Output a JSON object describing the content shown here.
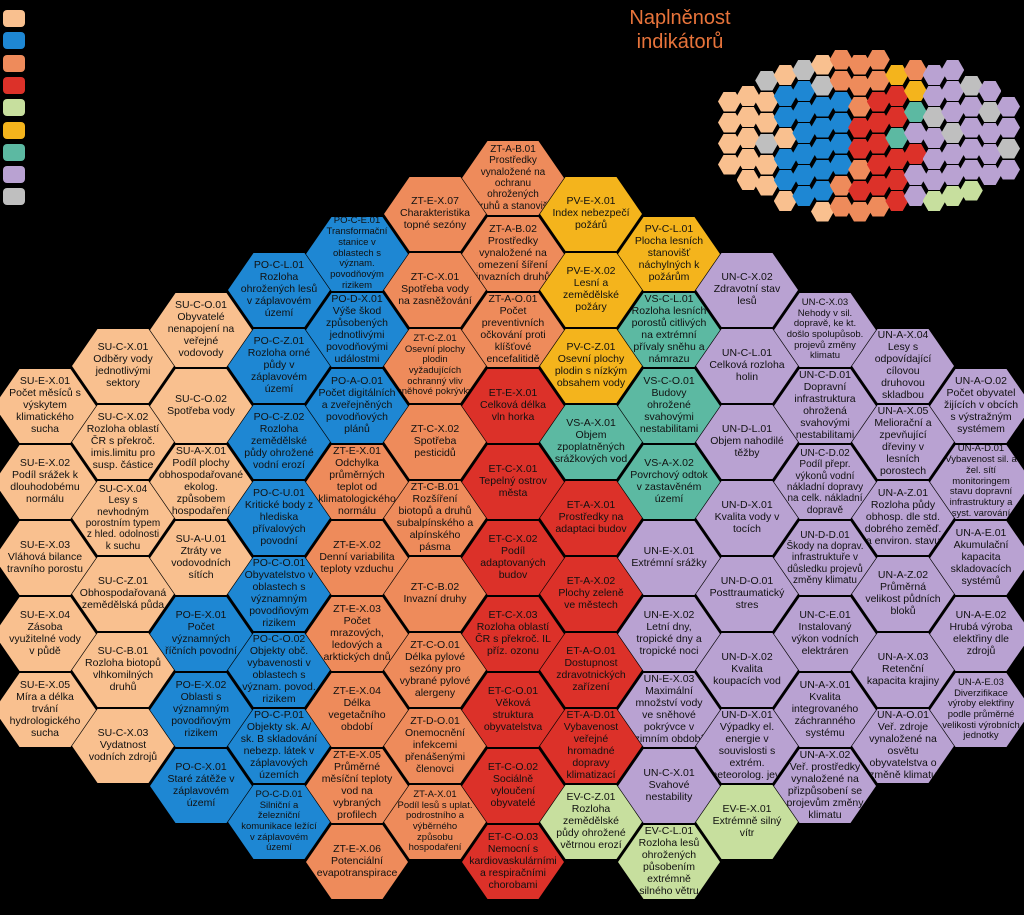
{
  "title": "Naplněnost indikátorů",
  "legend_colors": [
    "#f9c08f",
    "#1e87d3",
    "#ee8b5b",
    "#dc3129",
    "#c7df9e",
    "#f4b41c",
    "#5cb9a2",
    "#b9a2d2",
    "#bfbfbf"
  ],
  "minimap": [
    [
      "#f9c08f",
      "#f9c08f",
      "#f9c08f",
      "#f9c08f"
    ],
    [
      "#f9c08f",
      "#f9c08f",
      "#f9c08f",
      "#f9c08f",
      "#f9c08f"
    ],
    [
      "#bfbfbf",
      "#f9c08f",
      "#f9c08f",
      "#bfbfbf",
      "#f9c08f",
      "#f9c08f"
    ],
    [
      "#f9c08f",
      "#1e87d3",
      "#1e87d3",
      "#f9c08f",
      "#1e87d3",
      "#1e87d3",
      "#f9c08f"
    ],
    [
      "#bfbfbf",
      "#1e87d3",
      "#1e87d3",
      "#1e87d3",
      "#1e87d3",
      "#1e87d3",
      "#1e87d3"
    ],
    [
      "#f9c08f",
      "#bfbfbf",
      "#1e87d3",
      "#1e87d3",
      "#1e87d3",
      "#1e87d3",
      "#1e87d3",
      "#f9c08f"
    ],
    [
      "#ee8b5b",
      "#ee8b5b",
      "#1e87d3",
      "#1e87d3",
      "#1e87d3",
      "#1e87d3",
      "#ee8b5b",
      "#ee8b5b"
    ],
    [
      "#ee8b5b",
      "#ee8b5b",
      "#ee8b5b",
      "#dc3129",
      "#dc3129",
      "#ee8b5b",
      "#dc3129",
      "#ee8b5b"
    ],
    [
      "#ee8b5b",
      "#ee8b5b",
      "#dc3129",
      "#dc3129",
      "#dc3129",
      "#dc3129",
      "#dc3129",
      "#ee8b5b"
    ],
    [
      "#f4b41c",
      "#dc3129",
      "#dc3129",
      "#5cb9a2",
      "#dc3129",
      "#dc3129",
      "#dc3129"
    ],
    [
      "#ee8b5b",
      "#f4b41c",
      "#5cb9a2",
      "#b9a2d2",
      "#dc3129",
      "#b9a2d2",
      "#b9a2d2"
    ],
    [
      "#b9a2d2",
      "#b9a2d2",
      "#bfbfbf",
      "#b9a2d2",
      "#b9a2d2",
      "#b9a2d2",
      "#c7df9e"
    ],
    [
      "#b9a2d2",
      "#b9a2d2",
      "#b9a2d2",
      "#bfbfbf",
      "#b9a2d2",
      "#b9a2d2",
      "#c7df9e"
    ],
    [
      "#bfbfbf",
      "#b9a2d2",
      "#b9a2d2",
      "#b9a2d2",
      "#b9a2d2",
      "#c7df9e"
    ],
    [
      "#b9a2d2",
      "#bfbfbf",
      "#b9a2d2",
      "#b9a2d2",
      "#b9a2d2"
    ],
    [
      "#b9a2d2",
      "#b9a2d2",
      "#bfbfbf",
      "#b9a2d2"
    ]
  ],
  "nodes": [
    {
      "code": "SU-E-X.01",
      "label": "Počet měsíců s výskytem klimatického sucha",
      "color": "#f9c08f"
    },
    {
      "code": "SU-E-X.02",
      "label": "Podíl srážek k dlouhodobému normálu",
      "color": "#f9c08f"
    },
    {
      "code": "SU-E-X.03",
      "label": "Vláhová bilance travního porostu",
      "color": "#f9c08f"
    },
    {
      "code": "SU-E-X.04",
      "label": "Zásoba využitelné vody v půdě",
      "color": "#f9c08f"
    },
    {
      "code": "SU-E-X.05",
      "label": "Míra a délka trvání hydrologického sucha",
      "color": "#f9c08f"
    },
    {
      "code": "SU-C-X.01",
      "label": "Odběry vody jednotlivými sektory",
      "color": "#f9c08f"
    },
    {
      "code": "SU-C-X.02",
      "label": "Rozloha oblastí ČR s překroč. imis.limitu pro susp. částice",
      "color": "#f9c08f"
    },
    {
      "code": "SU-C-X.04",
      "label": "Lesy s nevhodným porostním typem z hled. odolnosti k suchu",
      "color": "#f9c08f"
    },
    {
      "code": "SU-C-Z.01",
      "label": "Obhospodařovaná zemědělská půda",
      "color": "#f9c08f"
    },
    {
      "code": "SU-C-B.01",
      "label": "Rozloha biotopů vlhkomilných druhů",
      "color": "#f9c08f"
    },
    {
      "code": "SU-C-X.03",
      "label": "Vydatnost vodních zdrojů",
      "color": "#f9c08f"
    },
    {
      "code": "SU-C-O.01",
      "label": "Obyvatelé nenapojení na veřejné vodovody",
      "color": "#f9c08f"
    },
    {
      "code": "SU-C-O.02",
      "label": "Spotřeba vody",
      "color": "#f9c08f"
    },
    {
      "code": "SU-A-X.01",
      "label": "Podíl plochy obhospodařované ekolog. způsobem hospodaření",
      "color": "#f9c08f"
    },
    {
      "code": "SU-A-U.01",
      "label": "Ztráty ve vodovodních sítích",
      "color": "#f9c08f"
    },
    {
      "code": "PO-E-X.01",
      "label": "Počet významných říčních povodní",
      "color": "#1e87d3"
    },
    {
      "code": "PO-E-X.02",
      "label": "Oblasti s významným povodňovým rizikem",
      "color": "#1e87d3"
    },
    {
      "code": "PO-C-X.01",
      "label": "Staré zátěže v záplavovém území",
      "color": "#1e87d3"
    },
    {
      "code": "PO-C-L.01",
      "label": "Rozloha ohrožených lesů v záplavovém území",
      "color": "#1e87d3"
    },
    {
      "code": "PO-C-Z.01",
      "label": "Rozloha orné půdy v záplavovém území",
      "color": "#1e87d3"
    },
    {
      "code": "PO-C-Z.02",
      "label": "Rozloha zemědělské půdy ohrožené vodní erozí",
      "color": "#1e87d3"
    },
    {
      "code": "PO-C-U.01",
      "label": "Kritické body z hlediska přívalových povodní",
      "color": "#1e87d3"
    },
    {
      "code": "PO-C-O.01",
      "label": "Obyvatelstvo v oblastech s významným povodňovým rizikem",
      "color": "#1e87d3"
    },
    {
      "code": "PO-C-O.02",
      "label": "Objekty obč. vybavenosti v oblastech s význam. povod. rizikem",
      "color": "#1e87d3"
    },
    {
      "code": "PO-C-P.01",
      "label": "Objekty sk. A/ sk. B skladování nebezp. látek v záplavových územích",
      "color": "#1e87d3"
    },
    {
      "code": "PO-C-D.01",
      "label": "Silniční a železniční komunikace ležící v záplavovém území",
      "color": "#1e87d3"
    },
    {
      "code": "PO-C-E.01",
      "label": "Transformační stanice v oblastech s význam. povodňovým rizikem",
      "color": "#1e87d3"
    },
    {
      "code": "PO-D-X.01",
      "label": "Výše škod způsobených jednotlivými povodňovými událostmi",
      "color": "#1e87d3"
    },
    {
      "code": "PO-A-O.01",
      "label": "Počet digitálních a zveřejněných povodňových plánů",
      "color": "#1e87d3"
    },
    {
      "code": "ZT-E-X.01",
      "label": "Odchylka průměrných teplot od klimatologického normálu",
      "color": "#ee8b5b"
    },
    {
      "code": "ZT-E-X.02",
      "label": "Denní variabilita teploty vzduchu",
      "color": "#ee8b5b"
    },
    {
      "code": "ZT-E-X.03",
      "label": "Počet mrazových, ledových a arktických dnů",
      "color": "#ee8b5b"
    },
    {
      "code": "ZT-E-X.04",
      "label": "Délka vegetačního období",
      "color": "#ee8b5b"
    },
    {
      "code": "ZT-E-X.05",
      "label": "Průměrné měsíční teploty vod na vybraných profilech",
      "color": "#ee8b5b"
    },
    {
      "code": "ZT-E-X.06",
      "label": "Potenciální evapotranspirace",
      "color": "#ee8b5b"
    },
    {
      "code": "ZT-E-X.07",
      "label": "Charakteristika topné sezóny",
      "color": "#ee8b5b"
    },
    {
      "code": "ZT-C-X.01",
      "label": "Spotřeba vody na zasněžování",
      "color": "#ee8b5b"
    },
    {
      "code": "ZT-C-Z.01",
      "label": "Osevní plochy plodin vyžadujících ochranný vliv sněhové pokrývky",
      "color": "#ee8b5b"
    },
    {
      "code": "ZT-C-X.02",
      "label": "Spotřeba pesticidů",
      "color": "#ee8b5b"
    },
    {
      "code": "ZT-C-B.01",
      "label": "Rozšíření biotopů a druhů subalpínského a alpínského pásma",
      "color": "#ee8b5b"
    },
    {
      "code": "ZT-C-B.02",
      "label": "Invazní druhy",
      "color": "#ee8b5b"
    },
    {
      "code": "ZT-C-O.01",
      "label": "Délka pylové sezóny pro vybrané pylové alergeny",
      "color": "#ee8b5b"
    },
    {
      "code": "ZT-D-O.01",
      "label": "Onemocnění infekcemi přenášenými členovci",
      "color": "#ee8b5b"
    },
    {
      "code": "ZT-A-X.01",
      "label": "Podíl lesů s uplat. podrostního a výběrného způsobu hospodaření",
      "color": "#ee8b5b"
    },
    {
      "code": "ZT-A-B.01",
      "label": "Prostředky vynaložené na ochranu ohrožených druhů a stanovišť",
      "color": "#ee8b5b"
    },
    {
      "code": "ZT-A-B.02",
      "label": "Prostředky vynaložené na omezení šíření invazních druhů",
      "color": "#ee8b5b"
    },
    {
      "code": "ZT-A-O.01",
      "label": "Počet preventivních očkování proti klíšťové encefalitidě",
      "color": "#ee8b5b"
    },
    {
      "code": "ET-E-X.01",
      "label": "Celková délka vln horka",
      "color": "#dc3129"
    },
    {
      "code": "ET-C-X.01",
      "label": "Tepelný ostrov města",
      "color": "#dc3129"
    },
    {
      "code": "ET-C-X.02",
      "label": "Podíl adaptovaných budov",
      "color": "#dc3129"
    },
    {
      "code": "ET-C-X.03",
      "label": "Rozloha oblastí ČR s překroč. IL příz. ozonu",
      "color": "#dc3129"
    },
    {
      "code": "ET-C-O.01",
      "label": "Věková struktura obyvatelstva",
      "color": "#dc3129"
    },
    {
      "code": "ET-C-O.02",
      "label": "Sociálně vyloučení obyvatelé",
      "color": "#dc3129"
    },
    {
      "code": "ET-C-O.03",
      "label": "Nemocní s kardiovaskulárními a respiračními chorobami",
      "color": "#dc3129"
    },
    {
      "code": "PV-E-X.01",
      "label": "Index nebezpečí požárů",
      "color": "#f4b41c"
    },
    {
      "code": "PV-E-X.02",
      "label": "Lesní a zemědělské požáry",
      "color": "#f4b41c"
    },
    {
      "code": "PV-C-Z.01",
      "label": "Osevní plochy plodin s nízkým obsahem vody",
      "color": "#f4b41c"
    },
    {
      "code": "VS-A-X.01",
      "label": "Objem zpoplatněných srážkových vod",
      "color": "#5cb9a2"
    },
    {
      "code": "ET-A-X.01",
      "label": "Prostředky na adaptaci budov",
      "color": "#dc3129"
    },
    {
      "code": "ET-A-X.02",
      "label": "Plochy zeleně ve městech",
      "color": "#dc3129"
    },
    {
      "code": "ET-A-O.01",
      "label": "Dostupnost zdravotnických zařízení",
      "color": "#dc3129"
    },
    {
      "code": "ET-A-D.01",
      "label": "Vybavenost veřejné hromadné dopravy klimatizací",
      "color": "#dc3129"
    },
    {
      "code": "EV-C-Z.01",
      "label": "Rozloha zemědělské půdy ohrožené větrnou erozí",
      "color": "#c7df9e"
    },
    {
      "code": "PV-C-L.01",
      "label": "Plocha lesních stanovišť náchylných k požárům",
      "color": "#f4b41c"
    },
    {
      "code": "VS-C-L.01",
      "label": "Rozloha lesních porostů citlivých na extrémní přívaly sněhu a námrazu",
      "color": "#5cb9a2"
    },
    {
      "code": "VS-C-O.01",
      "label": "Budovy ohrožené svahovými nestabilitami",
      "color": "#5cb9a2"
    },
    {
      "code": "VS-A-X.02",
      "label": "Povrchový odtok v zastavěném území",
      "color": "#5cb9a2"
    },
    {
      "code": "UN-E-X.01",
      "label": "Extrémní srážky",
      "color": "#b9a2d2"
    },
    {
      "code": "UN-E-X.02",
      "label": "Letní dny, tropické dny a tropické noci",
      "color": "#b9a2d2"
    },
    {
      "code": "UN-E-X.03",
      "label": "Maximální množství vody ve sněhové pokrývce v zimním období",
      "color": "#b9a2d2"
    },
    {
      "code": "UN-C-X.01",
      "label": "Svahové nestability",
      "color": "#b9a2d2"
    },
    {
      "code": "EV-C-L.01",
      "label": "Rozloha lesů ohrožených působením extrémně silného větru",
      "color": "#c7df9e"
    },
    {
      "code": "UN-C-X.02",
      "label": "Zdravotní stav lesů",
      "color": "#b9a2d2"
    },
    {
      "code": "UN-C-L.01",
      "label": "Celková rozloha holin",
      "color": "#b9a2d2"
    },
    {
      "code": "UN-D-L.01",
      "label": "Objem nahodilé těžby",
      "color": "#b9a2d2"
    },
    {
      "code": "UN-D-X.01",
      "label": "Kvalita vody v tocích",
      "color": "#b9a2d2"
    },
    {
      "code": "UN-D-O.01",
      "label": "Posttraumatický stres",
      "color": "#b9a2d2"
    },
    {
      "code": "UN-D-X.02",
      "label": "Kvalita koupacích vod",
      "color": "#b9a2d2"
    },
    {
      "code": "UN-D-X.01",
      "label": "Výpadky el. energie v souvislosti s extrém. meteorolog. jevy",
      "color": "#b9a2d2"
    },
    {
      "code": "EV-E-X.01",
      "label": "Extrémně silný vítr",
      "color": "#c7df9e"
    },
    {
      "code": "UN-C-X.03",
      "label": "Nehody v sil. dopravě, ke kt. došlo spolupůsob. projevů změny klimatu",
      "color": "#b9a2d2"
    },
    {
      "code": "UN-C-D.01",
      "label": "Dopravní infrastruktura ohrožená svahovými nestabilitami",
      "color": "#b9a2d2"
    },
    {
      "code": "UN-C-D.02",
      "label": "Podíl přepr. výkonů vodní nákladní dopravy na celk. nákladní dopravě",
      "color": "#b9a2d2"
    },
    {
      "code": "UN-D-D.01",
      "label": "Škody na doprav. infrastruktuře v důsledku projevů změny klimatu",
      "color": "#b9a2d2"
    },
    {
      "code": "UN-C-E.01",
      "label": "Instalovaný výkon vodních elektráren",
      "color": "#b9a2d2"
    },
    {
      "code": "UN-A-X.01",
      "label": "Kvalita integrovaného záchranného systému",
      "color": "#b9a2d2"
    },
    {
      "code": "UN-A-X.02",
      "label": "Veř. prostředky vynaložené na přizpůsobení se projevům změny klimatu",
      "color": "#b9a2d2"
    },
    {
      "code": "UN-A-X.04",
      "label": "Lesy s odpovídající cílovou druhovou skladbou",
      "color": "#b9a2d2"
    },
    {
      "code": "UN-A-X.05",
      "label": "Meliorační a zpevňující dřeviny v lesních porostech",
      "color": "#b9a2d2"
    },
    {
      "code": "UN-A-Z.01",
      "label": "Rozloha půdy obhosp. dle std. dobrého zeměď. a environ. stavu",
      "color": "#b9a2d2"
    },
    {
      "code": "UN-A-Z.02",
      "label": "Průměrná velikost půdních bloků",
      "color": "#b9a2d2"
    },
    {
      "code": "UN-A-X.03",
      "label": "Retenční kapacita krajiny",
      "color": "#b9a2d2"
    },
    {
      "code": "UN-A-O.01",
      "label": "Veř. zdroje vynaložené na osvětu obyvatelstva o změně klimatu",
      "color": "#b9a2d2"
    },
    {
      "code": "UN-A-O.02",
      "label": "Počet obyvatel žijících v obcích s výstražným systémem",
      "color": "#b9a2d2"
    },
    {
      "code": "UN-A-D.01",
      "label": "Vybavenost sil. a žel. sítí monitoringem stavu dopravní infrastruktury a syst. varování",
      "color": "#b9a2d2"
    },
    {
      "code": "UN-A-E.01",
      "label": "Akumulační kapacita skladovacích systémů",
      "color": "#b9a2d2"
    },
    {
      "code": "UN-A-E.02",
      "label": "Hrubá výroba elektřiny dle zdrojů",
      "color": "#b9a2d2"
    },
    {
      "code": "UN-A-E.03",
      "label": "Diverzifikace výroby elektřiny podle průměrné velikosti výrobních jednotky",
      "color": "#b9a2d2"
    }
  ]
}
